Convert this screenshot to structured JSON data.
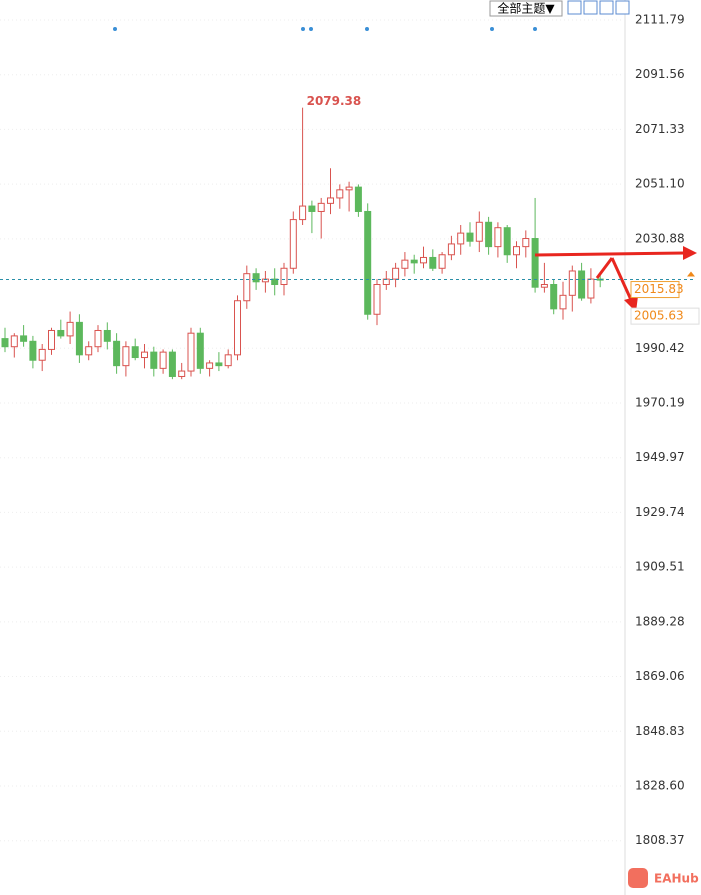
{
  "chart_data": {
    "type": "candlestick",
    "open": [
      1994,
      1991,
      1995,
      1993,
      1986,
      1990,
      1997,
      1995,
      2000,
      1988,
      1991,
      1997,
      1993,
      1984,
      1991,
      1987,
      1989,
      1983,
      1989,
      1980,
      1982,
      1996,
      1983,
      1985,
      1984,
      1988,
      2008,
      2018,
      2015,
      2016,
      2014,
      2020,
      2038,
      2043,
      2041,
      2044,
      2046,
      2049,
      2050,
      2041,
      2003,
      2014,
      2016,
      2020,
      2023,
      2022,
      2024,
      2020,
      2025,
      2029,
      2033,
      2030,
      2037,
      2028,
      2035,
      2025,
      2028,
      2031,
      2013,
      2014,
      2005,
      2010,
      2019,
      2009,
      2016
    ],
    "high": [
      1998,
      1996,
      1999,
      1995,
      1992,
      1998,
      2001,
      2004,
      2003,
      1993,
      1999,
      2000,
      1996,
      1993,
      1994,
      1992,
      1991,
      1990,
      1990,
      1985,
      1998,
      1998,
      1986,
      1989,
      1990,
      2010,
      2021,
      2020,
      2019,
      2020,
      2022,
      2041,
      2079.38,
      2045,
      2046,
      2057,
      2051,
      2052,
      2051,
      2044,
      2016,
      2019,
      2022,
      2026,
      2025,
      2028,
      2027,
      2026,
      2032,
      2036,
      2037,
      2041,
      2039,
      2037,
      2036,
      2030,
      2034,
      2046,
      2022,
      2016,
      2015,
      2021,
      2022,
      2020,
      2018
    ],
    "low": [
      1989,
      1987,
      1991,
      1983,
      1982,
      1988,
      1994,
      1992,
      1985,
      1986,
      1989,
      1990,
      1981,
      1980,
      1986,
      1983,
      1980,
      1981,
      1979,
      1979,
      1980,
      1981,
      1980,
      1982,
      1983,
      1986,
      2005,
      2012,
      2011,
      2010,
      2010,
      2018,
      2036,
      2033,
      2031,
      2040,
      2042,
      2041,
      2039,
      2001,
      1999,
      2012,
      2013,
      2017,
      2018,
      2020,
      2019,
      2018,
      2023,
      2025,
      2028,
      2026,
      2025,
      2024,
      2022,
      2020,
      2024,
      2011,
      2011,
      2003,
      2001,
      2004,
      2008,
      2007,
      2013
    ],
    "close": [
      1991,
      1995,
      1993,
      1986,
      1990,
      1997,
      1995,
      2000,
      1988,
      1991,
      1997,
      1993,
      1984,
      1991,
      1987,
      1989,
      1983,
      1989,
      1980,
      1982,
      1996,
      1983,
      1985,
      1984,
      1988,
      2008,
      2018,
      2015,
      2016,
      2014,
      2020,
      2038,
      2043,
      2041,
      2044,
      2046,
      2049,
      2050,
      2041,
      2003,
      2014,
      2016,
      2020,
      2023,
      2022,
      2024,
      2020,
      2025,
      2029,
      2033,
      2030,
      2037,
      2028,
      2035,
      2025,
      2028,
      2031,
      2013,
      2014,
      2005,
      2010,
      2019,
      2009,
      2016,
      2015.8
    ],
    "up_color": "#d9534f",
    "down_color": "#5cb85c",
    "ylim": [
      1788.3,
      2119.18
    ],
    "yticks": [
      2111.79,
      2091.56,
      2071.33,
      {
        "value": 2051.1,
        "label": "2051.10"
      },
      2030.88,
      1990.42,
      1970.19,
      1949.97,
      1929.74,
      1909.51,
      1889.28,
      1869.06,
      1848.83,
      {
        "value": 1828.6,
        "label": "1828.60"
      },
      1808.37
    ],
    "grid": true,
    "current_price": 2015.83,
    "target_price": 2005.63,
    "high_label_index": 32
  },
  "toolbar": {
    "theme_button": "全部主题▼"
  },
  "watermark": "EAHub"
}
